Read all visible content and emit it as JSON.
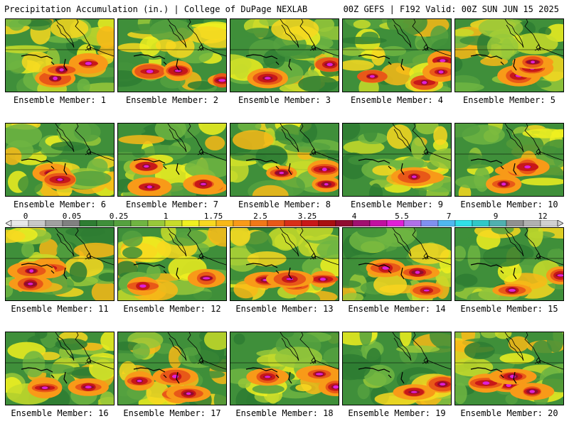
{
  "header": {
    "left": "Precipitation Accumulation (in.) | College of DuPage NEXLAB",
    "right": "00Z GEFS | F192 Valid: 00Z SUN JUN 15 2025"
  },
  "panels": [
    {
      "label": "Ensemble Member: 1"
    },
    {
      "label": "Ensemble Member: 2"
    },
    {
      "label": "Ensemble Member: 3"
    },
    {
      "label": "Ensemble Member: 4"
    },
    {
      "label": "Ensemble Member: 5"
    },
    {
      "label": "Ensemble Member: 6"
    },
    {
      "label": "Ensemble Member: 7"
    },
    {
      "label": "Ensemble Member: 8"
    },
    {
      "label": "Ensemble Member: 9"
    },
    {
      "label": "Ensemble Member: 10"
    },
    {
      "label": "Ensemble Member: 11"
    },
    {
      "label": "Ensemble Member: 12"
    },
    {
      "label": "Ensemble Member: 13"
    },
    {
      "label": "Ensemble Member: 14"
    },
    {
      "label": "Ensemble Member: 15"
    },
    {
      "label": "Ensemble Member: 16"
    },
    {
      "label": "Ensemble Member: 17"
    },
    {
      "label": "Ensemble Member: 18"
    },
    {
      "label": "Ensemble Member: 19"
    },
    {
      "label": "Ensemble Member: 20"
    }
  ],
  "colorbar": {
    "labels": [
      "0",
      "0.05",
      "0.25",
      "1",
      "1.75",
      "2.5",
      "3.25",
      "4",
      "5.5",
      "7",
      "9",
      "12"
    ],
    "colors": [
      "#e8e8e8",
      "#c8c8c8",
      "#a0a0a0",
      "#808080",
      "#2e7d32",
      "#3f8f3a",
      "#55a13f",
      "#6fb542",
      "#98c83a",
      "#c8dc2a",
      "#f0f020",
      "#f8d820",
      "#f8b818",
      "#f89a18",
      "#f07818",
      "#e85818",
      "#d83018",
      "#c81818",
      "#a81010",
      "#900c30",
      "#a01070",
      "#c010a0",
      "#e020d8",
      "#b070e8",
      "#8090f0",
      "#50b8f0",
      "#30e0e8",
      "#30c8c8",
      "#50b0b0",
      "#909090",
      "#b0b0b0",
      "#d0d0d0"
    ]
  }
}
